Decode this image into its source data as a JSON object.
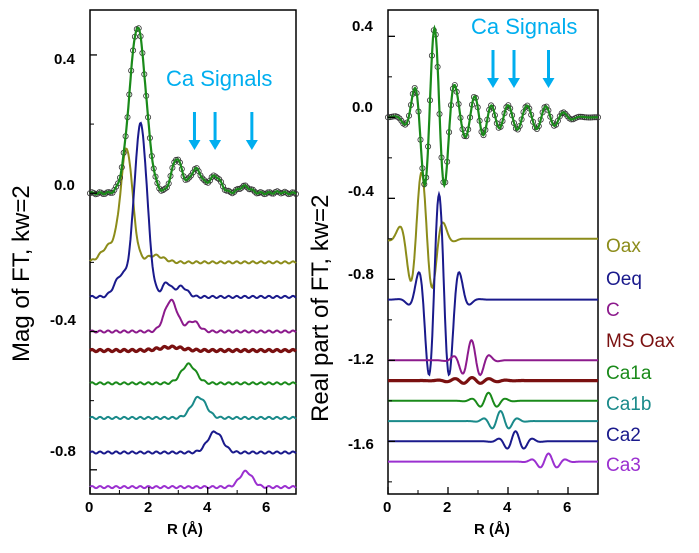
{
  "colors": {
    "axis": "#000000",
    "annotation": "#00aeef",
    "data_markers": "#333333",
    "fit": "#1a8a1a"
  },
  "chart_data": [
    {
      "type": "line",
      "ylabel": "Mag of FT, kw=2",
      "xlabel": "R (Å)",
      "xlim": [
        0,
        7
      ],
      "ylim": [
        -0.87,
        0.53
      ],
      "xticks": [
        0,
        2,
        4,
        6
      ],
      "yticks": [
        0.4,
        0.0,
        -0.4,
        -0.8
      ],
      "xtick_labels": [
        "0",
        "2",
        "4",
        "6"
      ],
      "ytick_labels": [
        "0.4",
        "0.0",
        "-0.4",
        "-0.8"
      ],
      "grid": false,
      "annotation": {
        "text": "Ca Signals",
        "arrows_at_x": [
          3.55,
          4.25,
          5.5
        ]
      },
      "experimental": {
        "name": "data",
        "style": "open-circles",
        "color": "#333333",
        "offset": 0.0,
        "peaks": [
          [
            1.62,
            0.48,
            0.28
          ],
          [
            2.95,
            0.1,
            0.18
          ],
          [
            3.6,
            0.07,
            0.2
          ],
          [
            4.25,
            0.05,
            0.2
          ],
          [
            5.25,
            0.02,
            0.2
          ],
          [
            6.4,
            0.003,
            0.15
          ]
        ],
        "baseline": 0.0
      },
      "fit": {
        "color": "#1a8a1a",
        "offset": 0.0
      },
      "components": [
        {
          "name": "Oax",
          "color": "#8c8c1a",
          "offset": -0.2,
          "peaks": [
            [
              1.25,
              0.32,
              0.2
            ],
            [
              0.7,
              0.05,
              0.3
            ],
            [
              2.2,
              0.02,
              0.3
            ]
          ]
        },
        {
          "name": "Oeq",
          "color": "#1a1a8c",
          "offset": -0.3,
          "peaks": [
            [
              1.72,
              0.5,
              0.22
            ],
            [
              1.05,
              0.06,
              0.22
            ],
            [
              2.6,
              0.04,
              0.15
            ],
            [
              3.1,
              0.03,
              0.2
            ]
          ]
        },
        {
          "name": "C",
          "color": "#8c1a8c",
          "offset": -0.4,
          "peaks": [
            [
              2.75,
              0.09,
              0.22
            ],
            [
              3.5,
              0.03,
              0.2
            ]
          ]
        },
        {
          "name": "MS Oax",
          "color": "#7a1010",
          "offset": -0.455,
          "peaks": [
            [
              2.75,
              0.01,
              0.4
            ]
          ]
        },
        {
          "name": "Ca1a",
          "color": "#1a8a1a",
          "offset": -0.55,
          "peaks": [
            [
              3.35,
              0.055,
              0.25
            ]
          ]
        },
        {
          "name": "Ca1b",
          "color": "#1a8a8a",
          "offset": -0.65,
          "peaks": [
            [
              3.7,
              0.06,
              0.25
            ]
          ]
        },
        {
          "name": "Ca2",
          "color": "#1a1a8c",
          "offset": -0.75,
          "peaks": [
            [
              4.25,
              0.06,
              0.25
            ]
          ]
        },
        {
          "name": "Ca3",
          "color": "#9b30d0",
          "offset": -0.85,
          "peaks": [
            [
              5.3,
              0.045,
              0.22
            ]
          ]
        }
      ]
    },
    {
      "type": "line",
      "ylabel": "Real part of FT, kw=2",
      "xlabel": "R (Å)",
      "xlim": [
        0,
        7
      ],
      "ylim": [
        -1.86,
        0.53
      ],
      "xticks": [
        0,
        2,
        4,
        6
      ],
      "yticks": [
        0.4,
        0.0,
        -0.4,
        -0.8,
        -1.2,
        -1.6
      ],
      "xtick_labels": [
        "0",
        "2",
        "4",
        "6"
      ],
      "ytick_labels": [
        "0.4",
        "0.0",
        "-0.4",
        "-0.8",
        "-1.2",
        "-1.6"
      ],
      "grid": false,
      "annotation": {
        "text": "Ca Signals",
        "arrows_at_x": [
          3.5,
          4.2,
          5.35
        ]
      },
      "experimental": {
        "name": "data",
        "style": "open-circles",
        "color": "#333333",
        "offset": 0.0,
        "waves": [
          [
            1.55,
            0.44,
            0.45,
            2.9,
            0.0
          ],
          [
            2.95,
            0.1,
            0.4,
            3.2,
            0.5
          ],
          [
            4.1,
            0.06,
            0.7,
            3.2,
            1.1
          ],
          [
            5.3,
            0.04,
            0.5,
            3.4,
            0.3
          ]
        ]
      },
      "fit": {
        "color": "#1a8a1a",
        "offset": 0.0
      },
      "components": [
        {
          "name": "Oax",
          "color": "#8c8c1a",
          "offset": -0.6,
          "waves": [
            [
              1.15,
              0.33,
              0.42,
              2.6,
              0.3
            ]
          ]
        },
        {
          "name": "Oeq",
          "color": "#1a1a8c",
          "offset": -0.9,
          "waves": [
            [
              1.7,
              0.52,
              0.42,
              2.8,
              0.0
            ]
          ]
        },
        {
          "name": "C",
          "color": "#8c1a8c",
          "offset": -1.2,
          "waves": [
            [
              2.8,
              0.1,
              0.35,
              3.2,
              0.2
            ]
          ]
        },
        {
          "name": "MS Oax",
          "color": "#7a1010",
          "offset": -1.3,
          "waves": [
            [
              2.8,
              0.015,
              0.6,
              3.5,
              0.0
            ]
          ]
        },
        {
          "name": "Ca1a",
          "color": "#1a8a1a",
          "offset": -1.4,
          "waves": [
            [
              3.35,
              0.04,
              0.35,
              3.4,
              0.0
            ]
          ]
        },
        {
          "name": "Ca1b",
          "color": "#1a8a8a",
          "offset": -1.5,
          "waves": [
            [
              3.75,
              0.05,
              0.35,
              3.4,
              0.0
            ]
          ]
        },
        {
          "name": "Ca2",
          "color": "#1a1a8c",
          "offset": -1.6,
          "waves": [
            [
              4.25,
              0.05,
              0.35,
              3.4,
              0.0
            ]
          ]
        },
        {
          "name": "Ca3",
          "color": "#9b30d0",
          "offset": -1.7,
          "waves": [
            [
              5.35,
              0.04,
              0.35,
              3.4,
              0.0
            ]
          ]
        }
      ]
    }
  ]
}
